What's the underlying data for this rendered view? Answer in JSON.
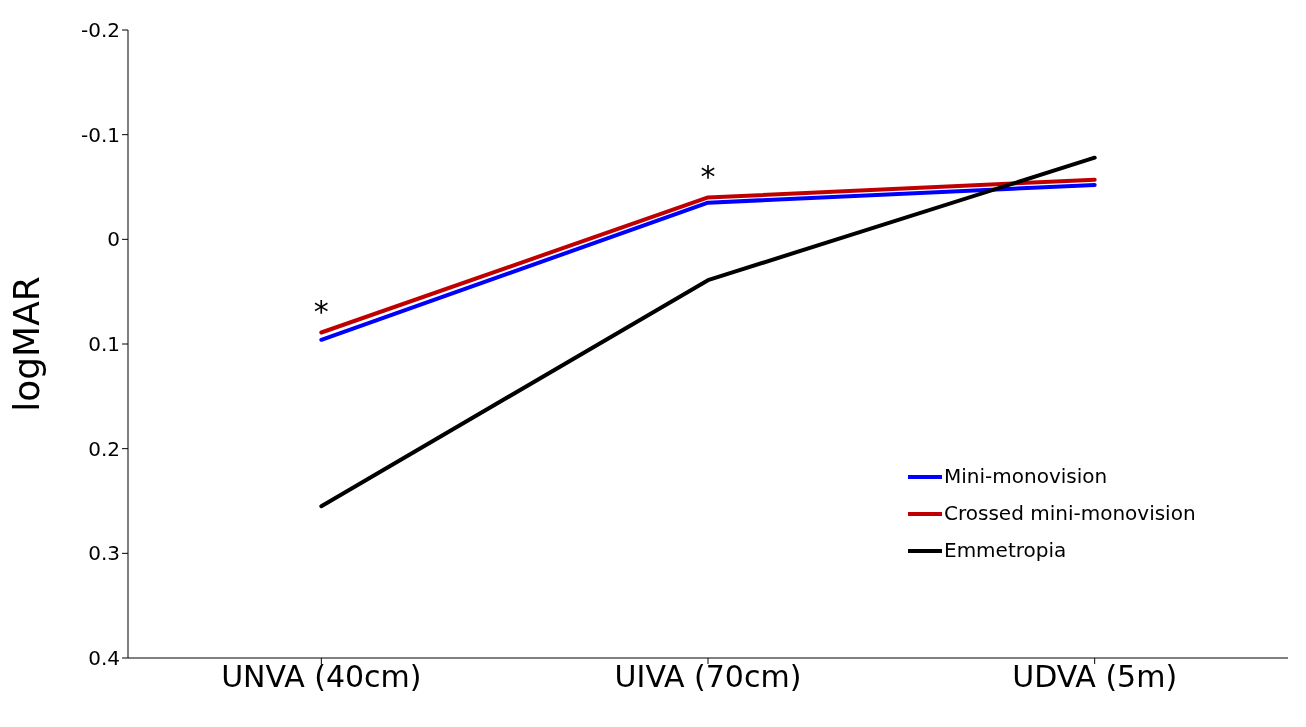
{
  "chart_data": {
    "type": "line",
    "ylabel": "logMAR",
    "categories": [
      "UNVA (40cm)",
      "UIVA (70cm)",
      "UDVA (5m)"
    ],
    "series": [
      {
        "name": "Mini-monovision",
        "color": "#0000ff",
        "values": [
          0.096,
          -0.035,
          -0.052
        ]
      },
      {
        "name": "Crossed mini-monovision",
        "color": "#c00000",
        "values": [
          0.089,
          -0.04,
          -0.057
        ]
      },
      {
        "name": "Emmetropia",
        "color": "#000000",
        "values": [
          0.255,
          0.039,
          -0.078
        ]
      }
    ],
    "ylim": [
      0.4,
      -0.2
    ],
    "yticks": [
      -0.2,
      -0.1,
      0,
      0.1,
      0.2,
      0.3,
      0.4
    ],
    "annotations": [
      "*",
      "*"
    ],
    "grid": false,
    "legend": "bottom right",
    "marker": "none",
    "line_style": "solid"
  }
}
